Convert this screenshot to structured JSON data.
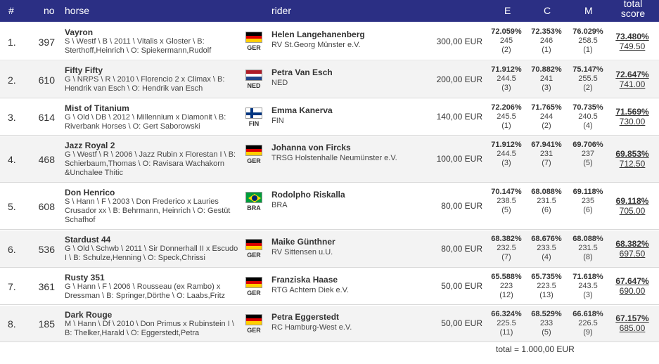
{
  "header": {
    "rank": "#",
    "no": "no",
    "horse": "horse",
    "rider": "rider",
    "e": "E",
    "c": "C",
    "m": "M",
    "total_line1": "total",
    "total_line2": "score"
  },
  "colors": {
    "header_bg": "#2b2f84",
    "alt_row": "#f3f3f3"
  },
  "rows": [
    {
      "rank": "1.",
      "no": "397",
      "horse": "Vayron",
      "info": "S \\ Westf \\ B \\ 2011 \\ Vitalis x Gloster \\ B: Sterthoff,Heinrich \\ O: Spiekermann,Rudolf",
      "flag": "germany-flag-icon",
      "nation": "GER",
      "rider": "Helen Langehanenberg",
      "club": "RV St.Georg Münster e.V.",
      "prize": "300,00 EUR",
      "e": {
        "pct": "72.059%",
        "pts": "245",
        "rank": "(2)"
      },
      "c": {
        "pct": "72.353%",
        "pts": "246",
        "rank": "(1)"
      },
      "m": {
        "pct": "76.029%",
        "pts": "258.5",
        "rank": "(1)"
      },
      "total_pct": "73.480%",
      "total_pts": "749.50"
    },
    {
      "rank": "2.",
      "no": "610",
      "horse": "Fifty Fifty",
      "info": "G \\ NRPS \\ R \\ 2010 \\ Florencio 2 x Climax \\ B: Hendrik van Esch \\ O: Hendrik van Esch",
      "flag": "netherlands-flag-icon",
      "nation": "NED",
      "rider": "Petra Van Esch",
      "club": "NED",
      "prize": "200,00 EUR",
      "e": {
        "pct": "71.912%",
        "pts": "244.5",
        "rank": "(3)"
      },
      "c": {
        "pct": "70.882%",
        "pts": "241",
        "rank": "(3)"
      },
      "m": {
        "pct": "75.147%",
        "pts": "255.5",
        "rank": "(2)"
      },
      "total_pct": "72.647%",
      "total_pts": "741.00"
    },
    {
      "rank": "3.",
      "no": "614",
      "horse": "Mist of Titanium",
      "info": "G \\ Old \\ DB \\ 2012 \\ Millennium x Diamonit \\ B: Riverbank Horses \\ O: Gert Saborowski",
      "flag": "finland-flag-icon",
      "nation": "FIN",
      "rider": "Emma Kanerva",
      "club": "FIN",
      "prize": "140,00 EUR",
      "e": {
        "pct": "72.206%",
        "pts": "245.5",
        "rank": "(1)"
      },
      "c": {
        "pct": "71.765%",
        "pts": "244",
        "rank": "(2)"
      },
      "m": {
        "pct": "70.735%",
        "pts": "240.5",
        "rank": "(4)"
      },
      "total_pct": "71.569%",
      "total_pts": "730.00"
    },
    {
      "rank": "4.",
      "no": "468",
      "horse": "Jazz Royal 2",
      "info": "G \\ Westf \\ R \\ 2006 \\ Jazz Rubin x Florestan I \\ B: Schierbaum,Thomas \\ O: Ravisara Wachakorn &Unchalee Thitic",
      "flag": "germany-flag-icon",
      "nation": "GER",
      "rider": "Johanna von Fircks",
      "club": "TRSG Holstenhalle Neumünster e.V.",
      "prize": "100,00 EUR",
      "e": {
        "pct": "71.912%",
        "pts": "244.5",
        "rank": "(3)"
      },
      "c": {
        "pct": "67.941%",
        "pts": "231",
        "rank": "(7)"
      },
      "m": {
        "pct": "69.706%",
        "pts": "237",
        "rank": "(5)"
      },
      "total_pct": "69.853%",
      "total_pts": "712.50"
    },
    {
      "rank": "5.",
      "no": "608",
      "horse": "Don Henrico",
      "info": "S \\ Hann \\ F \\ 2003 \\ Don Frederico x Lauries Crusador xx \\ B: Behrmann, Heinrich \\ O: Gestüt Schafhof",
      "flag": "brazil-flag-icon",
      "nation": "BRA",
      "rider": "Rodolpho Riskalla",
      "club": "BRA",
      "prize": "80,00 EUR",
      "e": {
        "pct": "70.147%",
        "pts": "238.5",
        "rank": "(5)"
      },
      "c": {
        "pct": "68.088%",
        "pts": "231.5",
        "rank": "(6)"
      },
      "m": {
        "pct": "69.118%",
        "pts": "235",
        "rank": "(6)"
      },
      "total_pct": "69.118%",
      "total_pts": "705.00"
    },
    {
      "rank": "6.",
      "no": "536",
      "horse": "Stardust 44",
      "info": "G \\ Old \\ Schwb \\ 2011 \\ Sir Donnerhall II x Escudo I \\ B: Schulze,Henning \\ O: Speck,Chrissi",
      "flag": "germany-flag-icon",
      "nation": "GER",
      "rider": "Maike Günthner",
      "club": "RV Sittensen u.U.",
      "prize": "80,00 EUR",
      "e": {
        "pct": "68.382%",
        "pts": "232.5",
        "rank": "(7)"
      },
      "c": {
        "pct": "68.676%",
        "pts": "233.5",
        "rank": "(4)"
      },
      "m": {
        "pct": "68.088%",
        "pts": "231.5",
        "rank": "(8)"
      },
      "total_pct": "68.382%",
      "total_pts": "697.50"
    },
    {
      "rank": "7.",
      "no": "361",
      "horse": "Rusty 351",
      "info": "G \\ Hann \\ F \\ 2006 \\ Rousseau (ex Rambo) x Dressman \\ B: Springer,Dörthe \\ O: Laabs,Fritz",
      "flag": "germany-flag-icon",
      "nation": "GER",
      "rider": "Franziska Haase",
      "club": "RTG Achtern Diek e.V.",
      "prize": "50,00 EUR",
      "e": {
        "pct": "65.588%",
        "pts": "223",
        "rank": "(12)"
      },
      "c": {
        "pct": "65.735%",
        "pts": "223.5",
        "rank": "(13)"
      },
      "m": {
        "pct": "71.618%",
        "pts": "243.5",
        "rank": "(3)"
      },
      "total_pct": "67.647%",
      "total_pts": "690.00"
    },
    {
      "rank": "8.",
      "no": "185",
      "horse": "Dark Rouge",
      "info": "M \\ Hann \\ Df \\ 2010 \\ Don Primus x Rubinstein I \\ B: Thelker,Harald \\ O: Eggerstedt,Petra",
      "flag": "germany-flag-icon",
      "nation": "GER",
      "rider": "Petra Eggerstedt",
      "club": "RC Hamburg-West e.V.",
      "prize": "50,00 EUR",
      "e": {
        "pct": "66.324%",
        "pts": "225.5",
        "rank": "(11)"
      },
      "c": {
        "pct": "68.529%",
        "pts": "233",
        "rank": "(5)"
      },
      "m": {
        "pct": "66.618%",
        "pts": "226.5",
        "rank": "(9)"
      },
      "total_pct": "67.157%",
      "total_pts": "685.00"
    }
  ],
  "footer": {
    "total": "total = 1.000,00 EUR"
  }
}
